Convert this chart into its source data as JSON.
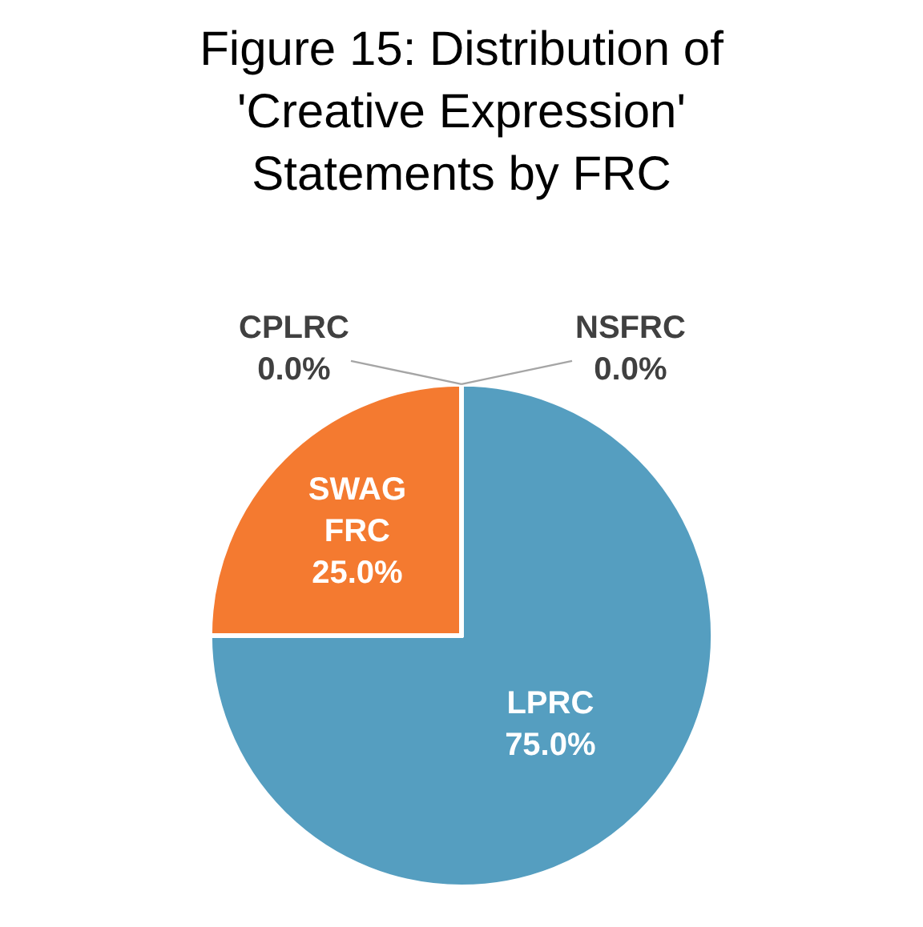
{
  "chart_data": {
    "type": "pie",
    "title": "Figure 15: Distribution of 'Creative Expression' Statements by FRC",
    "categories": [
      "LPRC",
      "SWAG FRC",
      "CPLRC",
      "NSFRC"
    ],
    "values": [
      75,
      25,
      0,
      0
    ],
    "value_labels": [
      "75.0%",
      "25.0%",
      "0.0%",
      "0.0%"
    ],
    "colors": [
      "#559ec0",
      "#f47a30",
      "#a5a5a5",
      "#ffc000"
    ],
    "legend": false
  }
}
